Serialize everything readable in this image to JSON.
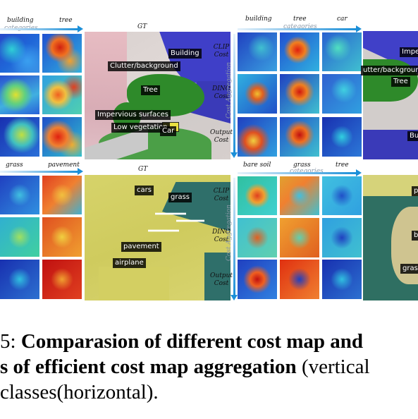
{
  "figure": {
    "top_left": {
      "categories_label": "categories",
      "columns": [
        "building",
        "tree"
      ],
      "gt_label": "GT",
      "gt_tags": [
        "Building",
        "Clutter/background",
        "Tree",
        "Impervious surfaces",
        "Low vegetation",
        "Car"
      ]
    },
    "top_right": {
      "categories_label": "categories",
      "columns": [
        "building",
        "tree",
        "car"
      ],
      "rows": [
        [
          "CLIP",
          "Cost"
        ],
        [
          "DINO",
          "Cost"
        ],
        [
          "Output",
          "Cost"
        ]
      ],
      "vertical_label": "Cost Aggregation",
      "gt_tags": [
        "Impe",
        "utter/background",
        "Tree",
        "Bui"
      ]
    },
    "bottom_left": {
      "columns": [
        "grass",
        "pavement"
      ],
      "gt_label": "GT",
      "gt_tags": [
        "cars",
        "grass",
        "pavement",
        "airplane"
      ]
    },
    "bottom_right": {
      "categories_label": "categories",
      "columns": [
        "bare soil",
        "grass",
        "tree"
      ],
      "rows": [
        [
          "CLIP",
          "Cost"
        ],
        [
          "DINO",
          "Cost"
        ],
        [
          "Output",
          "Cost"
        ]
      ],
      "vertical_label": "Cost Aggregation",
      "gt_tags": [
        "p",
        "b",
        "grass"
      ]
    }
  },
  "caption": {
    "line1_prefix": "5: ",
    "line1_bold": "Comparasion of different cost map and",
    "line2_bold": "s of efficient cost map aggregation",
    "line2_rest": " (vertical",
    "line3": "classes(horizontal)."
  }
}
